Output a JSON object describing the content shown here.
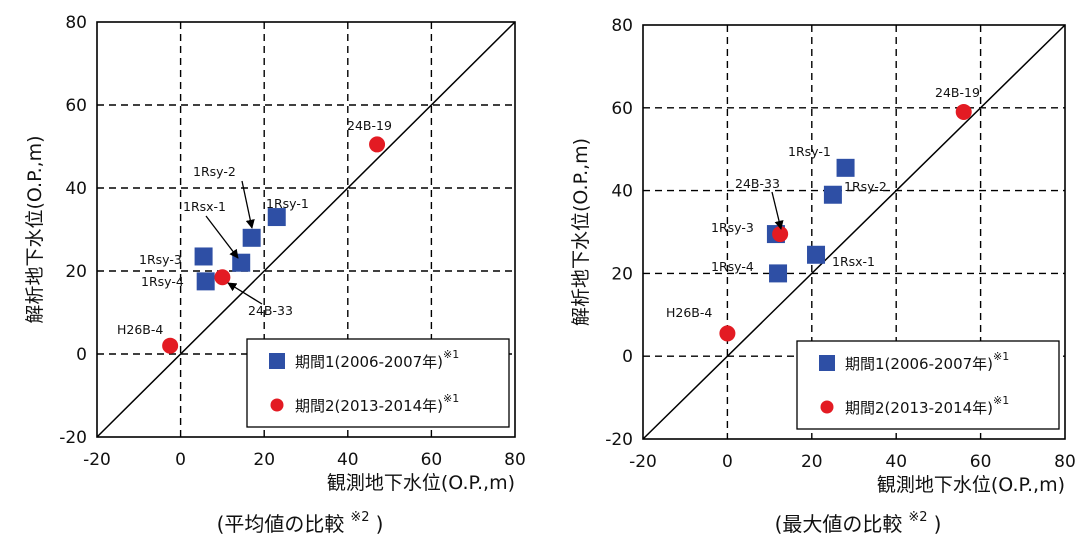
{
  "chart_data": [
    {
      "type": "scatter",
      "caption": "(平均値の比較",
      "caption_note": "※2",
      "caption_close": ")",
      "xlabel": "観測地下水位(O.P.,m)",
      "ylabel": "解析地下水位(O.P.,m)",
      "xlim": [
        -20,
        80
      ],
      "ylim": [
        -20,
        80
      ],
      "xticks": [
        -20,
        0,
        20,
        40,
        60,
        80
      ],
      "yticks": [
        -20,
        0,
        20,
        40,
        60,
        80
      ],
      "grid": true,
      "reference_line": "y = x",
      "legend_position": "bottom-right",
      "series": [
        {
          "name": "期間1(2006-2007年)",
          "note": "※1",
          "marker": "square",
          "color": "#2e4fa5",
          "points": [
            {
              "label": "1Rsy-1",
              "x": 23,
              "y": 33
            },
            {
              "label": "1Rsy-2",
              "x": 17,
              "y": 28
            },
            {
              "label": "1Rsx-1",
              "x": 14.5,
              "y": 22
            },
            {
              "label": "1Rsy-3",
              "x": 5.5,
              "y": 23.5
            },
            {
              "label": "1Rsy-4",
              "x": 6,
              "y": 17.5
            }
          ]
        },
        {
          "name": "期間2(2013-2014年)",
          "note": "※1",
          "marker": "circle",
          "color": "#e31b23",
          "points": [
            {
              "label": "24B-19",
              "x": 47,
              "y": 50.5
            },
            {
              "label": "24B-33",
              "x": 10,
              "y": 18.5
            },
            {
              "label": "H26B-4",
              "x": -2.5,
              "y": 2
            }
          ]
        }
      ]
    },
    {
      "type": "scatter",
      "caption": "(最大値の比較",
      "caption_note": "※2",
      "caption_close": ")",
      "xlabel": "観測地下水位(O.P.,m)",
      "ylabel": "解析地下水位(O.P.,m)",
      "xlim": [
        -20,
        80
      ],
      "ylim": [
        -20,
        80
      ],
      "xticks": [
        -20,
        0,
        20,
        40,
        60,
        80
      ],
      "yticks": [
        -20,
        0,
        20,
        40,
        60,
        80
      ],
      "grid": true,
      "reference_line": "y = x",
      "legend_position": "bottom-right",
      "series": [
        {
          "name": "期間1(2006-2007年)",
          "note": "※1",
          "marker": "square",
          "color": "#2e4fa5",
          "points": [
            {
              "label": "1Rsy-1",
              "x": 28,
              "y": 45.5
            },
            {
              "label": "1Rsy-2",
              "x": 25,
              "y": 39
            },
            {
              "label": "1Rsx-1",
              "x": 21,
              "y": 24.5
            },
            {
              "label": "1Rsy-3",
              "x": 11.5,
              "y": 29.5
            },
            {
              "label": "1Rsy-4",
              "x": 12,
              "y": 20
            }
          ]
        },
        {
          "name": "期間2(2013-2014年)",
          "note": "※1",
          "marker": "circle",
          "color": "#e31b23",
          "points": [
            {
              "label": "24B-19",
              "x": 56,
              "y": 59
            },
            {
              "label": "24B-33",
              "x": 12.5,
              "y": 29.5
            },
            {
              "label": "H26B-4",
              "x": 0,
              "y": 5.5
            }
          ]
        }
      ]
    }
  ]
}
